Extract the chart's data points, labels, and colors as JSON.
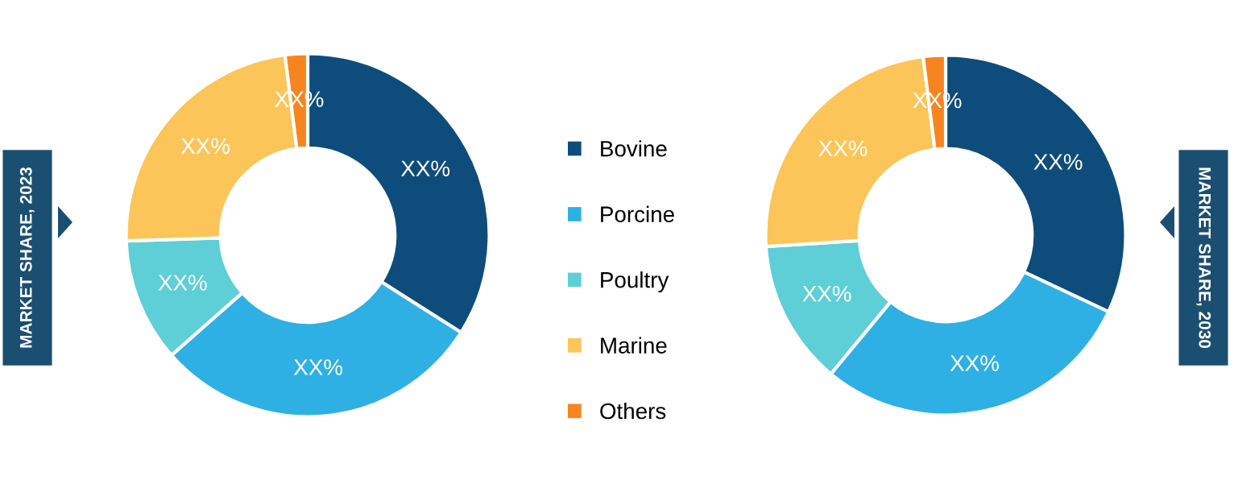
{
  "chart_data": [
    {
      "type": "donut",
      "title": "MARKET SHARE, 2023",
      "categories": [
        "Bovine",
        "Porcine",
        "Poultry",
        "Marine",
        "Others"
      ],
      "values": [
        34,
        29.5,
        11,
        23.5,
        2
      ],
      "colors": [
        "#0e4d7b",
        "#2fb0e4",
        "#5ecfd6",
        "#fcc55a",
        "#f7851f"
      ],
      "value_labels": [
        "XX%",
        "XX%",
        "XX%",
        "XX%",
        "XX%"
      ],
      "legend": "right"
    },
    {
      "type": "donut",
      "title": "MARKET SHARE, 2030",
      "categories": [
        null,
        null,
        null,
        null,
        null
      ],
      "values": [
        32,
        29,
        13,
        24,
        2
      ],
      "colors": [
        "#0e4d7b",
        "#2fb0e4",
        "#5ecfd6",
        "#fcc55a",
        "#f7851f"
      ],
      "value_labels": [
        "XX%",
        "XX%",
        "XX%",
        "XX%",
        "XX%"
      ]
    }
  ]
}
